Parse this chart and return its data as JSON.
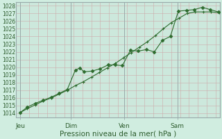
{
  "background_color": "#d0ede0",
  "plot_bg_color": "#cce8dc",
  "grid_color_major": "#99aaaa",
  "grid_color_minor": "#ccaaaa",
  "line_color": "#2d6b2d",
  "xlabel": "Pression niveau de la mer( hPa )",
  "ylim": [
    1013.5,
    1028.5
  ],
  "xlim": [
    -0.1,
    11.4
  ],
  "yticks": [
    1014,
    1015,
    1016,
    1017,
    1018,
    1019,
    1020,
    1021,
    1022,
    1023,
    1024,
    1025,
    1026,
    1027,
    1028
  ],
  "day_labels": [
    "Jeu",
    "Dim",
    "Ven",
    "Sam"
  ],
  "day_positions": [
    0.15,
    3.0,
    6.0,
    9.0
  ],
  "vline_positions": [
    0.15,
    3.0,
    6.0,
    9.0
  ],
  "line1_x": [
    0.15,
    0.55,
    1.0,
    1.45,
    1.9,
    2.35,
    2.8,
    3.25,
    3.5,
    3.75,
    4.2,
    4.65,
    5.1,
    5.5,
    5.9,
    6.35,
    6.8,
    7.25,
    7.7,
    8.15,
    8.6,
    9.05,
    9.5,
    9.95,
    10.4,
    10.85,
    11.3
  ],
  "line1_y": [
    1014.1,
    1014.8,
    1015.3,
    1015.7,
    1016.1,
    1016.6,
    1017.1,
    1019.6,
    1019.9,
    1019.4,
    1019.5,
    1019.8,
    1020.3,
    1020.3,
    1020.2,
    1022.2,
    1022.1,
    1022.3,
    1022.0,
    1023.5,
    1024.0,
    1027.3,
    1027.4,
    1027.5,
    1027.8,
    1027.5,
    1027.2
  ],
  "line2_x": [
    0.15,
    0.55,
    1.0,
    1.45,
    1.9,
    2.35,
    2.8,
    3.25,
    3.7,
    4.15,
    4.6,
    5.05,
    5.5,
    5.95,
    6.4,
    6.85,
    7.3,
    7.75,
    8.2,
    8.65,
    9.1,
    9.55,
    10.0,
    10.45,
    10.9,
    11.35
  ],
  "line2_y": [
    1014.1,
    1014.6,
    1015.1,
    1015.6,
    1016.0,
    1016.5,
    1017.0,
    1017.6,
    1018.1,
    1018.7,
    1019.3,
    1019.9,
    1020.5,
    1021.2,
    1021.9,
    1022.6,
    1023.3,
    1024.1,
    1025.0,
    1025.8,
    1026.4,
    1027.0,
    1027.2,
    1027.2,
    1027.2,
    1027.1
  ]
}
